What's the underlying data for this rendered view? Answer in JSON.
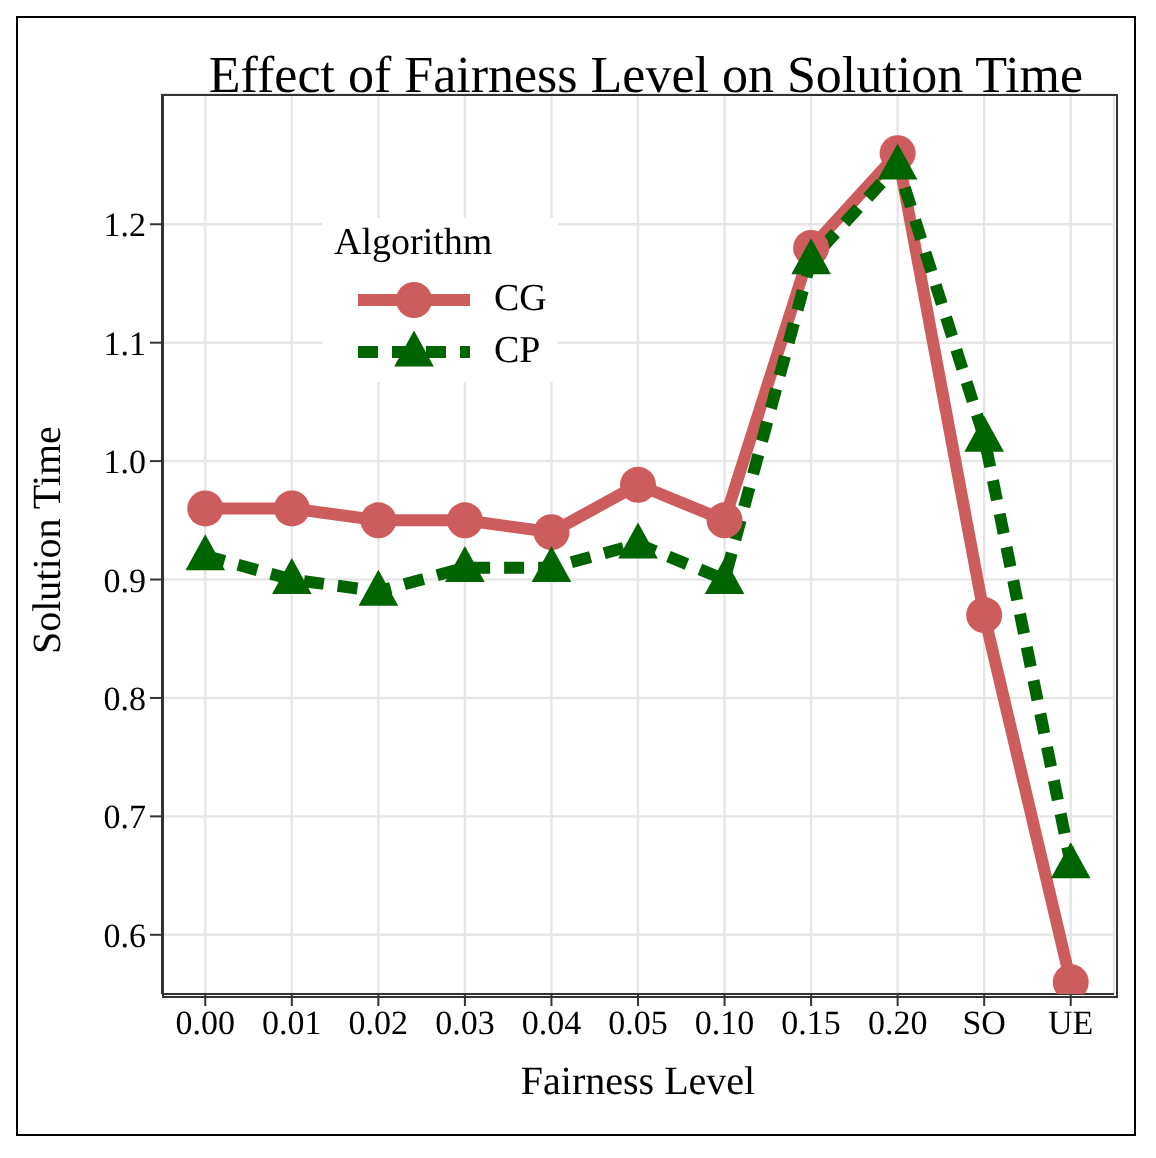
{
  "chart_data": {
    "type": "line",
    "title": "Effect of Fairness Level on Solution Time",
    "xlabel": "Fairness Level",
    "ylabel": "Solution Time",
    "legend_title": "Algorithm",
    "categories": [
      "0.00",
      "0.01",
      "0.02",
      "0.03",
      "0.04",
      "0.05",
      "0.10",
      "0.15",
      "0.20",
      "SO",
      "UE"
    ],
    "series": [
      {
        "name": "CG",
        "color": "#cd5c5c",
        "values": [
          0.96,
          0.96,
          0.95,
          0.95,
          0.94,
          0.98,
          0.95,
          1.18,
          1.26,
          0.87,
          0.56
        ],
        "marker": "circle",
        "line_style": "solid"
      },
      {
        "name": "CP",
        "color": "#006400",
        "values": [
          0.92,
          0.9,
          0.89,
          0.91,
          0.91,
          0.93,
          0.9,
          1.17,
          1.25,
          1.02,
          0.66
        ],
        "marker": "triangle",
        "line_style": "dashed"
      }
    ],
    "ylim": [
      0.55,
      1.31
    ],
    "yticks": [
      {
        "value": 0.6,
        "label": "0.6"
      },
      {
        "value": 0.7,
        "label": "0.7"
      },
      {
        "value": 0.8,
        "label": "0.8"
      },
      {
        "value": 0.9,
        "label": "0.9"
      },
      {
        "value": 1.0,
        "label": "1.0"
      },
      {
        "value": 1.1,
        "label": "1.1"
      },
      {
        "value": 1.2,
        "label": "1.2"
      }
    ],
    "grid": true,
    "legend": "top left"
  }
}
